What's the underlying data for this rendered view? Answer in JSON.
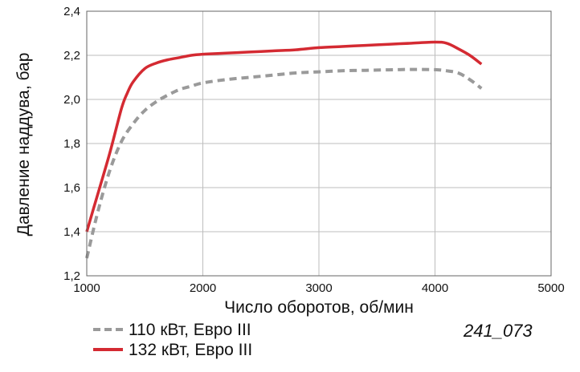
{
  "chart_data": {
    "type": "line",
    "xlabel": "Число оборотов, об/мин",
    "ylabel": "Давление наддува, бар",
    "xlim": [
      1000,
      5000
    ],
    "ylim": [
      1.2,
      2.4
    ],
    "x_ticks": [
      "1000",
      "2000",
      "3000",
      "4000",
      "5000"
    ],
    "y_ticks": [
      "1,2",
      "1,4",
      "1,6",
      "1,8",
      "2,0",
      "2,2",
      "2,4"
    ],
    "grid": true,
    "legend_position": "bottom-left",
    "figure_id": "241_073",
    "series": [
      {
        "name": "110 кВт, Евро III",
        "style": "dashed",
        "color": "#9a9a9a",
        "x": [
          1000,
          1100,
          1200,
          1300,
          1400,
          1500,
          1600,
          1700,
          1800,
          1900,
          2000,
          2200,
          2400,
          2600,
          2800,
          3000,
          3200,
          3400,
          3600,
          3800,
          4000,
          4100,
          4200,
          4300,
          4400
        ],
        "y": [
          1.28,
          1.5,
          1.68,
          1.81,
          1.89,
          1.95,
          1.99,
          2.02,
          2.045,
          2.06,
          2.075,
          2.09,
          2.1,
          2.11,
          2.12,
          2.125,
          2.13,
          2.132,
          2.134,
          2.136,
          2.135,
          2.13,
          2.12,
          2.09,
          2.05
        ]
      },
      {
        "name": "132 кВт, Евро III",
        "style": "solid",
        "color": "#d42a32",
        "x": [
          1000,
          1100,
          1200,
          1300,
          1350,
          1400,
          1500,
          1600,
          1700,
          1800,
          1900,
          2000,
          2200,
          2400,
          2600,
          2800,
          3000,
          3200,
          3400,
          3600,
          3800,
          4000,
          4100,
          4200,
          4300,
          4400
        ],
        "y": [
          1.4,
          1.58,
          1.76,
          1.96,
          2.03,
          2.08,
          2.14,
          2.165,
          2.18,
          2.19,
          2.2,
          2.205,
          2.21,
          2.215,
          2.22,
          2.225,
          2.235,
          2.24,
          2.245,
          2.25,
          2.255,
          2.26,
          2.255,
          2.23,
          2.2,
          2.16
        ]
      }
    ]
  }
}
